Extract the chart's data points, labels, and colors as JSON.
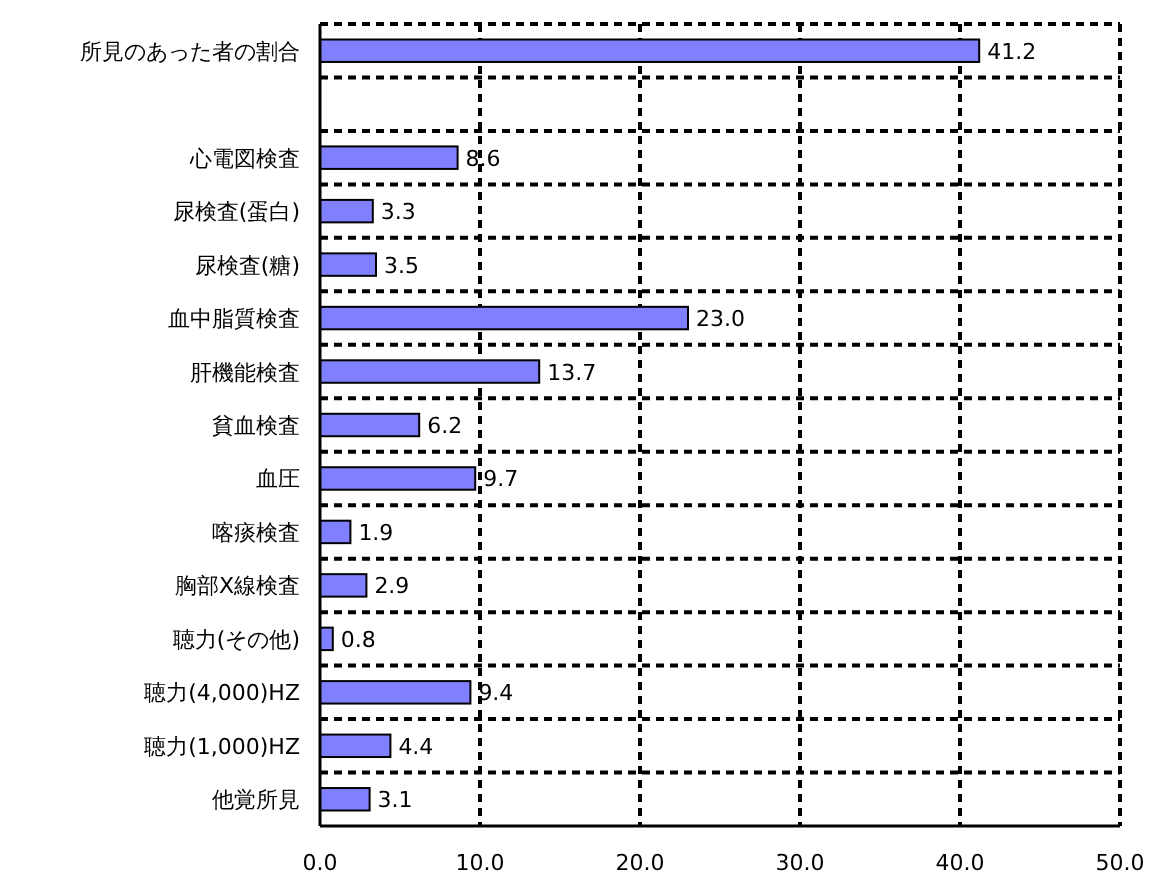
{
  "chart_data": {
    "type": "bar",
    "orientation": "horizontal",
    "categories": [
      "所見のあった者の割合",
      null,
      "心電図検査",
      "尿検査(蛋白)",
      "尿検査(糖)",
      "血中脂質検査",
      "肝機能検査",
      "貧血検査",
      "血圧",
      "喀痰検査",
      "胸部X線検査",
      "聴力(その他)",
      "聴力(4,000)HZ",
      "聴力(1,000)HZ",
      "他覚所見"
    ],
    "values": [
      41.2,
      null,
      8.6,
      3.3,
      3.5,
      23.0,
      13.7,
      6.2,
      9.7,
      1.9,
      2.9,
      0.8,
      9.4,
      4.4,
      3.1
    ],
    "value_labels": [
      "41.2",
      null,
      "8.6",
      "3.3",
      "3.5",
      "23.0",
      "13.7",
      "6.2",
      "9.7",
      "1.9",
      "2.9",
      "0.8",
      "9.4",
      "4.4",
      "3.1"
    ],
    "color": "#8080ff",
    "xlim": [
      0,
      50
    ],
    "xticks": [
      {
        "value": 0,
        "label": "0.0"
      },
      {
        "value": 10,
        "label": "10.0"
      },
      {
        "value": 20,
        "label": "20.0"
      },
      {
        "value": 30,
        "label": "30.0"
      },
      {
        "value": 40,
        "label": "40.0"
      },
      {
        "value": 50,
        "label": "50.0"
      }
    ],
    "grid": true
  }
}
